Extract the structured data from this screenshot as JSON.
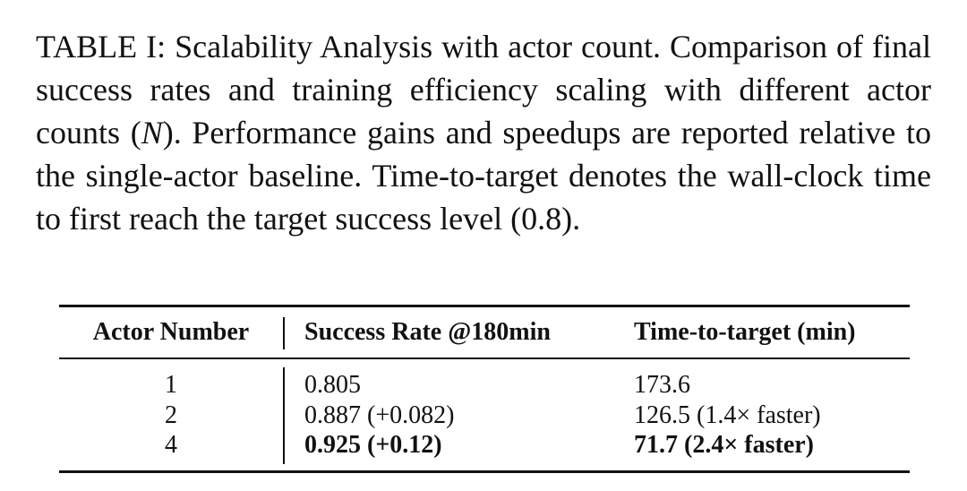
{
  "caption": {
    "label": "TABLE I:",
    "text_before_math": "Scalability Analysis with actor count. Comparison of final success rates and training efficiency scaling with different actor counts (",
    "math_symbol": "N",
    "text_after_math": "). Performance gains and speedups are reported relative to the single-actor baseline. Time-to-target denotes the wall-clock time to first reach the target success level (0.8)."
  },
  "table": {
    "headers": [
      "Actor Number",
      "Success Rate @180min",
      "Time-to-target (min)"
    ],
    "rows": [
      {
        "actors": "1",
        "success": "0.805",
        "time": "173.6",
        "bold": false
      },
      {
        "actors": "2",
        "success": "0.887 (+0.082)",
        "time": "126.5 (1.4× faster)",
        "bold": false
      },
      {
        "actors": "4",
        "success": "0.925 (+0.12)",
        "time": "71.7 (2.4× faster)",
        "bold": true
      }
    ]
  }
}
